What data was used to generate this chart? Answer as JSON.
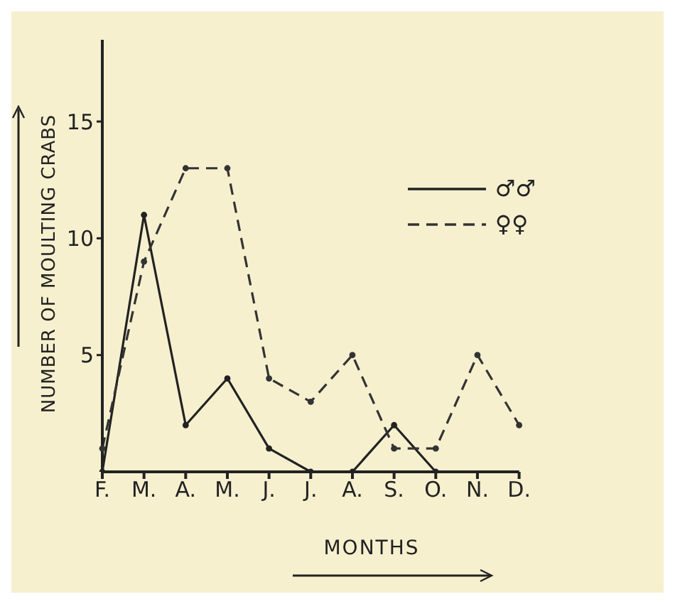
{
  "chart_data": {
    "type": "line",
    "xlabel": "MONTHS",
    "ylabel": "NUMBER OF MOULTING CRABS",
    "categories": [
      "F.",
      "M.",
      "A.",
      "M.",
      "J.",
      "J.",
      "A.",
      "S.",
      "O.",
      "N.",
      "D."
    ],
    "series": [
      {
        "name": "♂♂",
        "color": "#222222",
        "line_style": "solid",
        "values": [
          0,
          11,
          2,
          4,
          1,
          0,
          0,
          2,
          0,
          null,
          null
        ]
      },
      {
        "name": "♀♀",
        "color": "#333333",
        "line_style": "dashed",
        "values": [
          1,
          9,
          13,
          13,
          4,
          3,
          5,
          1,
          1,
          5,
          2
        ]
      }
    ],
    "ylim": [
      0,
      18.5
    ],
    "yticks": [
      5,
      10,
      15
    ],
    "grid": false,
    "legend": "top right",
    "marker": "circle"
  }
}
